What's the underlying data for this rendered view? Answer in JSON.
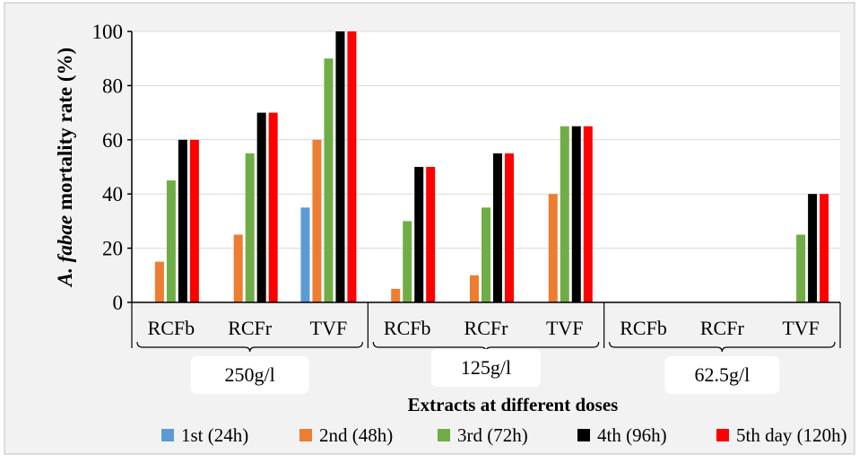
{
  "chart_data": {
    "type": "bar",
    "ylabel_italic": "A. fabae",
    "ylabel_rest": " mortality rate (%)",
    "xlabel": "Extracts at different doses",
    "ylim": [
      0,
      100
    ],
    "yticks": [
      0,
      20,
      40,
      60,
      80,
      100
    ],
    "grid": true,
    "legend_position": "bottom",
    "groups": [
      "250g/l",
      "125g/l",
      "62.5g/l"
    ],
    "categories": [
      "RCFb",
      "RCFr",
      "TVF",
      "RCFb",
      "RCFr",
      "TVF",
      "RCFb",
      "RCFr",
      "TVF"
    ],
    "series": [
      {
        "name": "1st (24h)",
        "color": "#5b9bd5",
        "values": [
          0,
          0,
          35,
          0,
          0,
          0,
          0,
          0,
          0
        ]
      },
      {
        "name": "2nd (48h)",
        "color": "#ed7d31",
        "values": [
          15,
          25,
          60,
          5,
          10,
          40,
          0,
          0,
          0
        ]
      },
      {
        "name": "3rd (72h)",
        "color": "#70ad47",
        "values": [
          45,
          55,
          90,
          30,
          35,
          65,
          0,
          0,
          25
        ]
      },
      {
        "name": "4th (96h)",
        "color": "#000000",
        "values": [
          60,
          70,
          100,
          50,
          55,
          65,
          0,
          0,
          40
        ]
      },
      {
        "name": "5th day (120h)",
        "color": "#ff0000",
        "values": [
          60,
          70,
          100,
          50,
          55,
          65,
          0,
          0,
          40
        ]
      }
    ]
  }
}
